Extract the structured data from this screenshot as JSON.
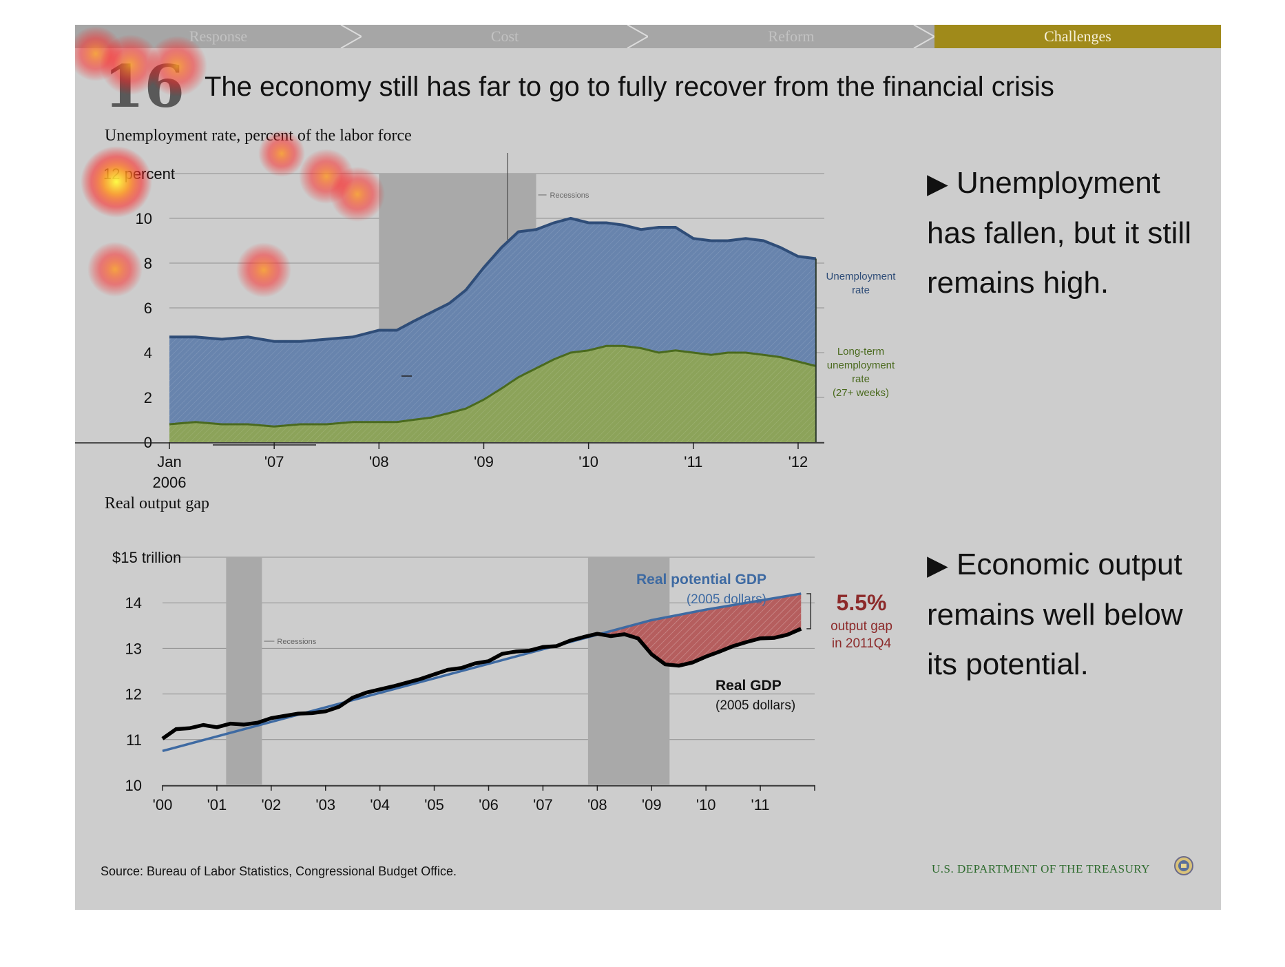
{
  "nav": {
    "tabs": [
      {
        "label": "Response",
        "active": false
      },
      {
        "label": "Cost",
        "active": false
      },
      {
        "label": "Reform",
        "active": false
      },
      {
        "label": "Challenges",
        "active": true
      }
    ],
    "active_color": "#a08a1a",
    "inactive_color": "#a6a6a6"
  },
  "slide": {
    "number": "16",
    "title": "The economy still has far to go to fully recover from the financial crisis"
  },
  "bullets": [
    {
      "arrow": "▶",
      "text": "Unemployment has fallen, but it still remains high."
    },
    {
      "arrow": "▶",
      "text": "Economic output remains well below its potential."
    }
  ],
  "footer": {
    "source": "Source: Bureau of Labor Statistics, Congressional Budget Office.",
    "agency": "U.S. DEPARTMENT OF THE TREASURY"
  },
  "colors": {
    "unemployment": "#6884ad",
    "unemployment_line": "#2f4d78",
    "longterm": "#8ca35a",
    "longterm_line": "#4a6a1e",
    "potential": "#3e6aa2",
    "gdp": "#000000",
    "gap_fill": "#b55e5e",
    "gap_text": "#8c2a2a",
    "recession": "#a9a9a9"
  },
  "chart_data": [
    {
      "type": "area",
      "title": "Unemployment rate, percent of the labor force",
      "ylabel": "",
      "ylim": [
        0,
        12
      ],
      "yticks": [
        "12 percent",
        "10",
        "8",
        "6",
        "4",
        "2",
        "0"
      ],
      "x_tick_labels": [
        "Jan\n2006",
        "'07",
        "'08",
        "'09",
        "'10",
        "'11",
        "'12"
      ],
      "xlim": [
        2006.0,
        2012.25
      ],
      "grid": true,
      "recessions": [
        {
          "label": "Recessions",
          "start": 2008.0,
          "end": 2009.5
        }
      ],
      "series": [
        {
          "name": "Unemployment rate",
          "label": [
            "Unemployment",
            "rate"
          ],
          "x": [
            2006.0,
            2006.25,
            2006.5,
            2006.75,
            2007.0,
            2007.25,
            2007.5,
            2007.75,
            2008.0,
            2008.17,
            2008.33,
            2008.5,
            2008.67,
            2008.83,
            2009.0,
            2009.17,
            2009.33,
            2009.5,
            2009.67,
            2009.83,
            2010.0,
            2010.17,
            2010.33,
            2010.5,
            2010.67,
            2010.83,
            2011.0,
            2011.17,
            2011.33,
            2011.5,
            2011.67,
            2011.83,
            2012.0,
            2012.17
          ],
          "values": [
            4.7,
            4.7,
            4.6,
            4.7,
            4.5,
            4.5,
            4.6,
            4.7,
            5.0,
            5.0,
            5.4,
            5.8,
            6.2,
            6.8,
            7.8,
            8.7,
            9.4,
            9.5,
            9.8,
            10.0,
            9.8,
            9.8,
            9.7,
            9.5,
            9.6,
            9.6,
            9.1,
            9.0,
            9.0,
            9.1,
            9.0,
            8.7,
            8.3,
            8.2
          ]
        },
        {
          "name": "Long-term unemployment rate (27+ weeks)",
          "label": [
            "Long-term",
            "unemployment",
            "rate",
            "(27+ weeks)"
          ],
          "x": [
            2006.0,
            2006.25,
            2006.5,
            2006.75,
            2007.0,
            2007.25,
            2007.5,
            2007.75,
            2008.0,
            2008.17,
            2008.33,
            2008.5,
            2008.67,
            2008.83,
            2009.0,
            2009.17,
            2009.33,
            2009.5,
            2009.67,
            2009.83,
            2010.0,
            2010.17,
            2010.33,
            2010.5,
            2010.67,
            2010.83,
            2011.0,
            2011.17,
            2011.33,
            2011.5,
            2011.67,
            2011.83,
            2012.0,
            2012.17
          ],
          "values": [
            0.8,
            0.9,
            0.8,
            0.8,
            0.7,
            0.8,
            0.8,
            0.9,
            0.9,
            0.9,
            1.0,
            1.1,
            1.3,
            1.5,
            1.9,
            2.4,
            2.9,
            3.3,
            3.7,
            4.0,
            4.1,
            4.3,
            4.3,
            4.2,
            4.0,
            4.1,
            4.0,
            3.9,
            4.0,
            4.0,
            3.9,
            3.8,
            3.6,
            3.4
          ]
        }
      ]
    },
    {
      "type": "line",
      "title": "Real output gap",
      "ylabel": "",
      "ylim": [
        10,
        15
      ],
      "yticks": [
        "$15 trillion",
        "14",
        "13",
        "12",
        "11",
        "10"
      ],
      "x_tick_labels": [
        "'00",
        "'01",
        "'02",
        "'03",
        "'04",
        "'05",
        "'06",
        "'07",
        "'08",
        "'09",
        "'10",
        "'11"
      ],
      "xlim": [
        2000.0,
        2012.0
      ],
      "grid": true,
      "recessions": [
        {
          "label": "Recessions",
          "start": 2001.17,
          "end": 2001.83
        },
        {
          "label": "Recessions",
          "start": 2007.83,
          "end": 2009.33
        }
      ],
      "annotation": {
        "value": "5.5%",
        "lines": [
          "output gap",
          "in 2011Q4"
        ]
      },
      "series": [
        {
          "name": "Real potential GDP",
          "sublabel": "(2005 dollars)",
          "x": [
            2000.0,
            2008.0,
            2009.0,
            2010.0,
            2011.0,
            2011.75
          ],
          "values": [
            10.75,
            13.3,
            13.62,
            13.85,
            14.05,
            14.2
          ]
        },
        {
          "name": "Real GDP",
          "sublabel": "(2005 dollars)",
          "x": [
            2000.0,
            2000.25,
            2000.5,
            2000.75,
            2001.0,
            2001.25,
            2001.5,
            2001.75,
            2002.0,
            2002.25,
            2002.5,
            2002.75,
            2003.0,
            2003.25,
            2003.5,
            2003.75,
            2004.0,
            2004.25,
            2004.5,
            2004.75,
            2005.0,
            2005.25,
            2005.5,
            2005.75,
            2006.0,
            2006.25,
            2006.5,
            2006.75,
            2007.0,
            2007.25,
            2007.5,
            2007.75,
            2008.0,
            2008.25,
            2008.5,
            2008.75,
            2009.0,
            2009.25,
            2009.5,
            2009.75,
            2010.0,
            2010.25,
            2010.5,
            2010.75,
            2011.0,
            2011.25,
            2011.5,
            2011.75
          ],
          "values": [
            11.02,
            11.23,
            11.25,
            11.32,
            11.27,
            11.35,
            11.33,
            11.37,
            11.47,
            11.52,
            11.57,
            11.58,
            11.62,
            11.72,
            11.92,
            12.03,
            12.1,
            12.17,
            12.25,
            12.33,
            12.43,
            12.53,
            12.57,
            12.67,
            12.72,
            12.88,
            12.93,
            12.95,
            13.03,
            13.05,
            13.17,
            13.25,
            13.32,
            13.27,
            13.31,
            13.22,
            12.87,
            12.65,
            12.62,
            12.69,
            12.82,
            12.93,
            13.05,
            13.14,
            13.22,
            13.23,
            13.3,
            13.43
          ]
        }
      ]
    }
  ]
}
